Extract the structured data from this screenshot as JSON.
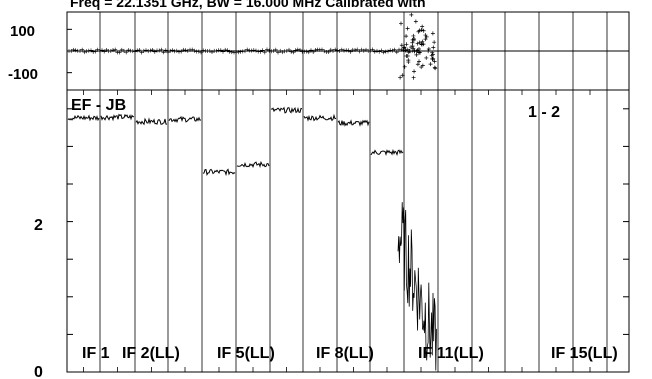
{
  "title": "Freq = 22.1351 GHz, BW = 16.000 MHz  Calibrated with",
  "colors": {
    "axis": "#000000",
    "data": "#000000",
    "background": "#ffffff"
  },
  "chart_data": [
    {
      "type": "scatter",
      "panel": "phase",
      "ylim": [
        -180,
        180
      ],
      "yticks": [
        100,
        -100
      ],
      "ytick_labels": [
        "100",
        "-100"
      ],
      "xlim": [
        0,
        16
      ],
      "baseline": 0,
      "note": "phase near 0 for IF 1-10, scatter at IF 11 edge"
    },
    {
      "type": "line",
      "panel": "amplitude",
      "ylim": [
        0,
        3.75
      ],
      "yticks": [
        0,
        2
      ],
      "ytick_labels": [
        "0",
        "2"
      ],
      "xlim": [
        0,
        16
      ],
      "baseline_label": "EF - JB",
      "corner_label": "1 - 2",
      "series": [
        {
          "if": 1,
          "value": 3.38
        },
        {
          "if": 2,
          "value": 3.39
        },
        {
          "if": 3,
          "value": 3.33
        },
        {
          "if": 4,
          "value": 3.36
        },
        {
          "if": 5,
          "value": 2.66
        },
        {
          "if": 6,
          "value": 2.76
        },
        {
          "if": 7,
          "value": 3.48
        },
        {
          "if": 8,
          "value": 3.38
        },
        {
          "if": 9,
          "value": 3.31
        },
        {
          "if": 10,
          "value": 2.92
        },
        {
          "if": 11,
          "value": 1.0
        }
      ],
      "if_labels": [
        {
          "text": "IF 1",
          "if": 1
        },
        {
          "text": "IF 2(LL)",
          "if": 2
        },
        {
          "text": "IF 5(LL)",
          "if": 5
        },
        {
          "text": "IF 8(LL)",
          "if": 8
        },
        {
          "text": "IF 11(LL)",
          "if": 11
        },
        {
          "text": "IF 15(LL)",
          "if": 15
        }
      ]
    }
  ]
}
